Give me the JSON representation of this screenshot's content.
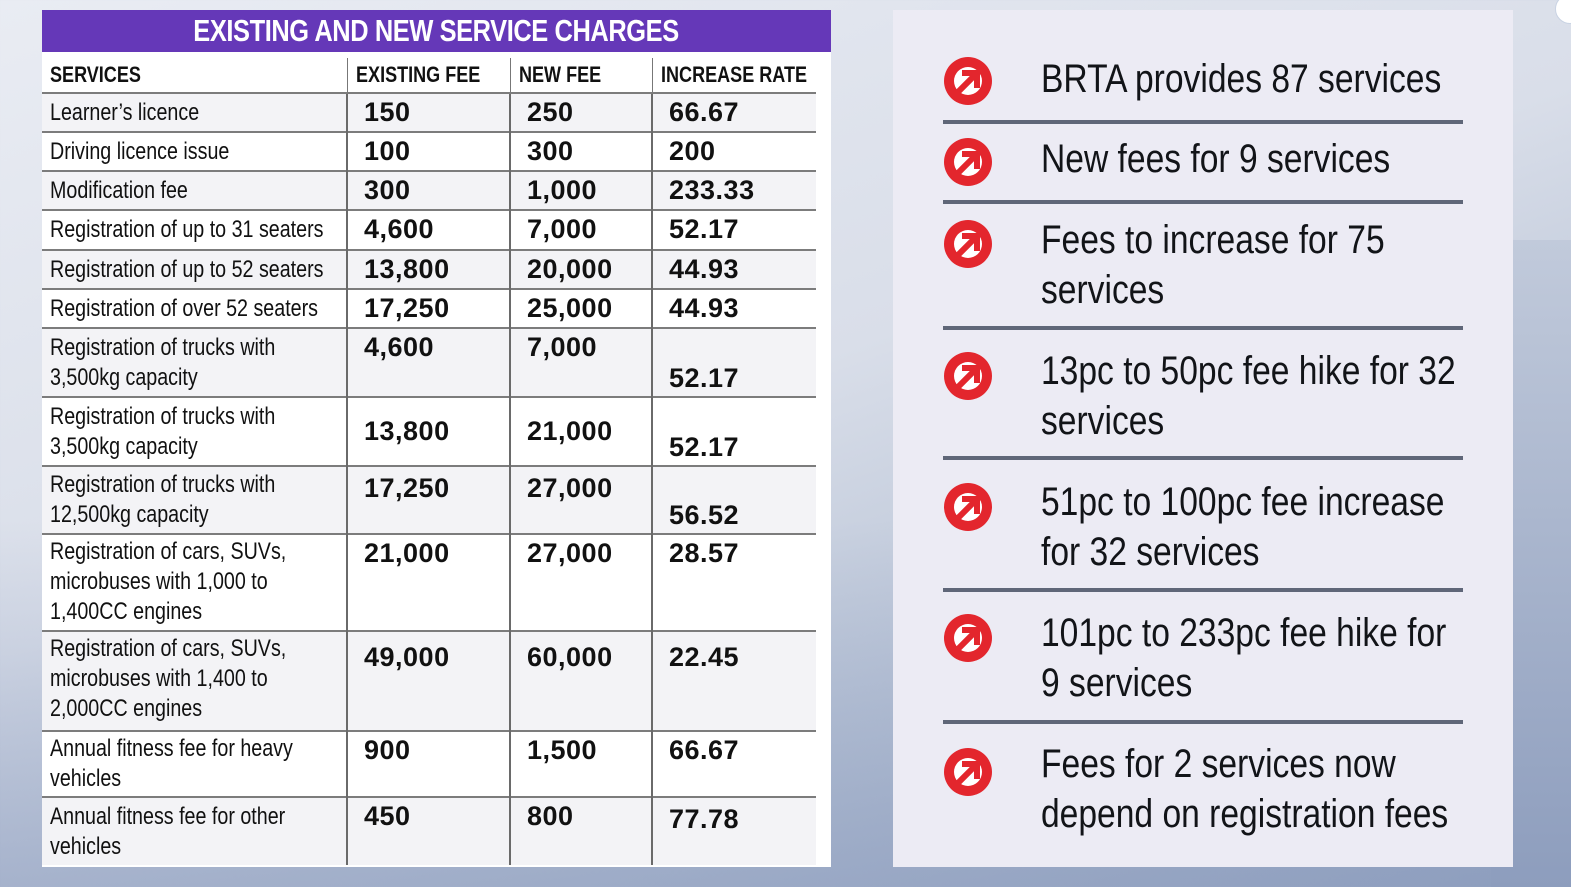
{
  "table": {
    "title": "EXISTING AND NEW SERVICE CHARGES",
    "headers": [
      "SERVICES",
      "EXISTING FEE",
      "NEW FEE",
      "INCREASE RATE"
    ],
    "rows": [
      {
        "service": "Learner’s licence",
        "existing": "150",
        "new": "250",
        "rate": "66.67"
      },
      {
        "service": "Driving licence issue",
        "existing": "100",
        "new": "300",
        "rate": "200"
      },
      {
        "service": "Modification fee",
        "existing": "300",
        "new": "1,000",
        "rate": "233.33"
      },
      {
        "service": "Registration of up to 31 seaters",
        "existing": "4,600",
        "new": "7,000",
        "rate": "52.17"
      },
      {
        "service": "Registration of up to 52 seaters",
        "existing": "13,800",
        "new": "20,000",
        "rate": "44.93"
      },
      {
        "service": "Registration of over 52 seaters",
        "existing": "17,250",
        "new": "25,000",
        "rate": "44.93"
      },
      {
        "service_lines": [
          "Registration of trucks with",
          "3,500kg capacity"
        ],
        "existing": "4,600",
        "new": "7,000",
        "rate": "52.17"
      },
      {
        "service_lines": [
          "Registration of trucks with",
          "3,500kg capacity"
        ],
        "existing": "13,800",
        "new": "21,000",
        "rate": "52.17"
      },
      {
        "service_lines": [
          "Registration of trucks with",
          "12,500kg capacity"
        ],
        "existing": "17,250",
        "new": "27,000",
        "rate": "56.52"
      },
      {
        "service_lines": [
          "Registration of cars, SUVs,",
          "microbuses with 1,000 to",
          "1,400CC engines"
        ],
        "existing": "21,000",
        "new": "27,000",
        "rate": "28.57"
      },
      {
        "service_lines": [
          "Registration of cars, SUVs,",
          "microbuses with 1,400 to",
          "2,000CC engines"
        ],
        "existing": "49,000",
        "new": "60,000",
        "rate": "22.45"
      },
      {
        "service_lines": [
          "Annual fitness fee for heavy",
          "vehicles"
        ],
        "existing": "900",
        "new": "1,500",
        "rate": "66.67"
      },
      {
        "service_lines": [
          "Annual fitness fee for other",
          "vehicles"
        ],
        "existing": "450",
        "new": "800",
        "rate": "77.78"
      }
    ]
  },
  "facts": [
    {
      "lines": [
        "BRTA provides 87 services"
      ],
      "icon": "arrow-up-right-circle-icon"
    },
    {
      "lines": [
        "New fees for 9 services"
      ],
      "icon": "arrow-up-right-circle-icon"
    },
    {
      "lines": [
        "Fees to increase for 75",
        "services"
      ],
      "icon": "arrow-up-right-circle-icon"
    },
    {
      "lines": [
        "13pc to 50pc fee hike for 32",
        "services"
      ],
      "icon": "arrow-up-right-circle-icon"
    },
    {
      "lines": [
        "51pc to 100pc fee increase",
        "for 32 services"
      ],
      "icon": "arrow-up-right-circle-icon"
    },
    {
      "lines": [
        "101pc to 233pc fee hike for",
        "9 services"
      ],
      "icon": "arrow-up-right-circle-icon"
    },
    {
      "lines": [
        "Fees for 2 services now",
        "depend on registration fees"
      ],
      "icon": "arrow-up-right-circle-icon"
    }
  ],
  "colors": {
    "title_bar": "#6538b8",
    "icon_red": "#e3262d",
    "divider": "#5f6678"
  }
}
